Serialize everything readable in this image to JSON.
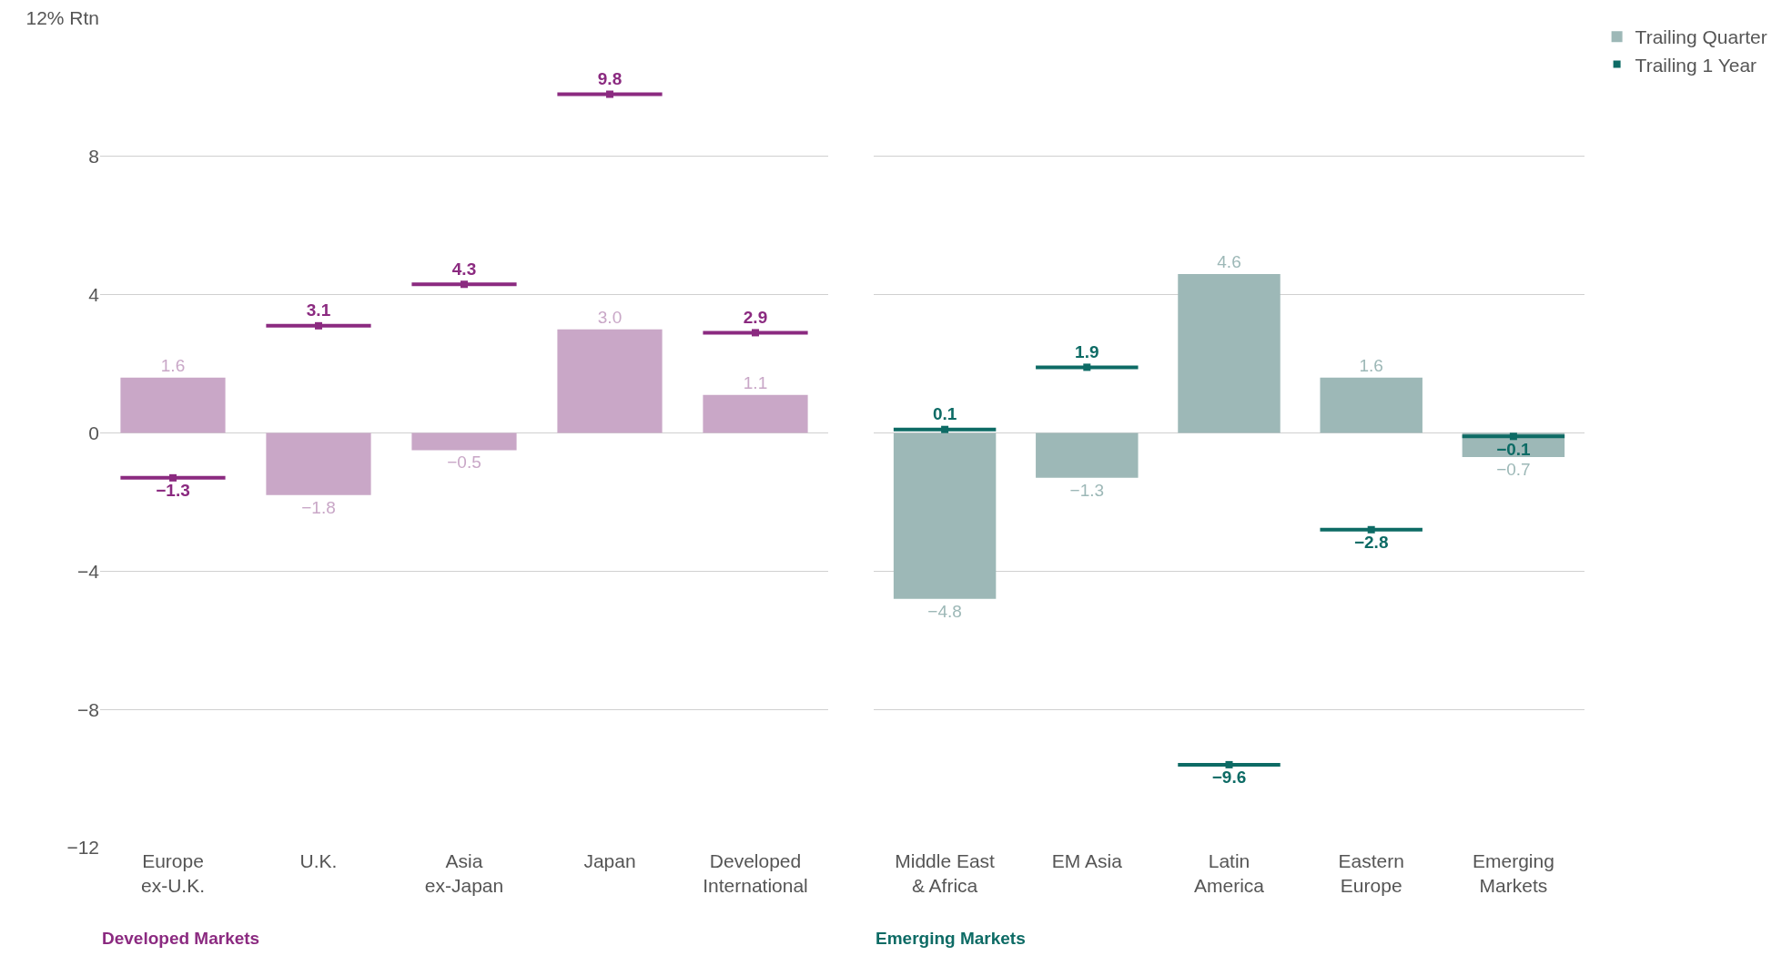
{
  "chart_data": [
    {
      "type": "bar",
      "xlabel": "Developed Markets",
      "categories": [
        "Europe\nex-U.K.",
        "U.K.",
        "Asia\nex-Japan",
        "Japan",
        "Developed\nInternational"
      ],
      "series": [
        {
          "color": "#c9a7c7",
          "values": [
            1.6,
            -1.8,
            -0.5,
            3.0,
            1.1
          ],
          "value_labels": [
            "1.6",
            "−1.8",
            "−0.5",
            "3.0",
            "1.1"
          ]
        },
        {
          "type": "scatter",
          "color": "#8b2a80",
          "values": [
            -1.3,
            3.1,
            4.3,
            9.8,
            2.9
          ],
          "value_labels": [
            "−1.3",
            "3.1",
            "4.3",
            "9.8",
            "2.9"
          ]
        }
      ],
      "ylim": [
        -12,
        12
      ],
      "yticks": [
        {
          "value": -12,
          "label": "−12"
        },
        {
          "value": -8,
          "label": "−8"
        },
        {
          "value": -4,
          "label": "−4"
        },
        0,
        4,
        8,
        {
          "value": 12,
          "label": "12% Rtn"
        }
      ],
      "grid": "y",
      "legend": false
    },
    {
      "type": "bar",
      "xlabel": "Emerging Markets",
      "categories": [
        "Middle East\n& Africa",
        "EM Asia",
        "Latin\nAmerica",
        "Eastern\nEurope",
        "Emerging\nMarkets"
      ],
      "series": [
        {
          "name": "Trailing Quarter",
          "color": "#9db8b7",
          "values": [
            -4.8,
            -1.3,
            4.6,
            1.6,
            -0.7
          ],
          "value_labels": [
            "−4.8",
            "−1.3",
            "4.6",
            "1.6",
            "−0.7"
          ]
        },
        {
          "type": "scatter",
          "name": "Trailing 1 Year",
          "color": "#0d6b65",
          "values": [
            0.1,
            1.9,
            -9.6,
            -2.8,
            -0.1
          ],
          "value_labels": [
            "0.1",
            "1.9",
            "−9.6",
            "−2.8",
            "−0.1"
          ]
        }
      ],
      "ylim": [
        -12,
        12
      ],
      "yticks": [
        -12,
        -8,
        -4,
        0,
        4,
        8,
        12
      ],
      "grid": "y",
      "legend": "top right",
      "tick_labels": "x"
    }
  ]
}
